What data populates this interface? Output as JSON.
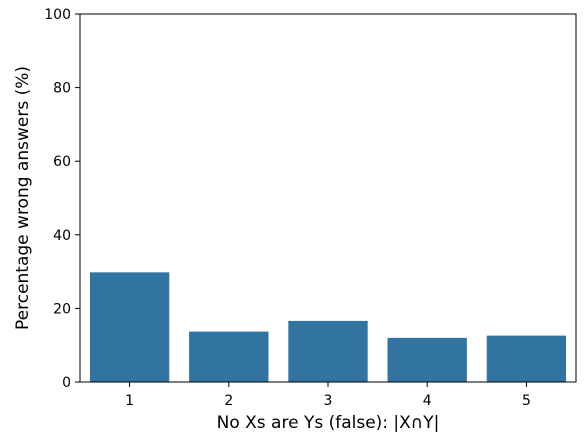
{
  "chart_data": {
    "type": "bar",
    "categories": [
      "1",
      "2",
      "3",
      "4",
      "5"
    ],
    "values": [
      29.8,
      13.7,
      16.6,
      12.0,
      12.6
    ],
    "xlabel": "No Xs are Ys (false): |X∩Y|",
    "ylabel": "Percentage wrong answers (%)",
    "ylim": [
      0,
      100
    ],
    "yticks": [
      0,
      20,
      40,
      60,
      80,
      100
    ],
    "bar_color": "#3274a1",
    "grid": false
  }
}
